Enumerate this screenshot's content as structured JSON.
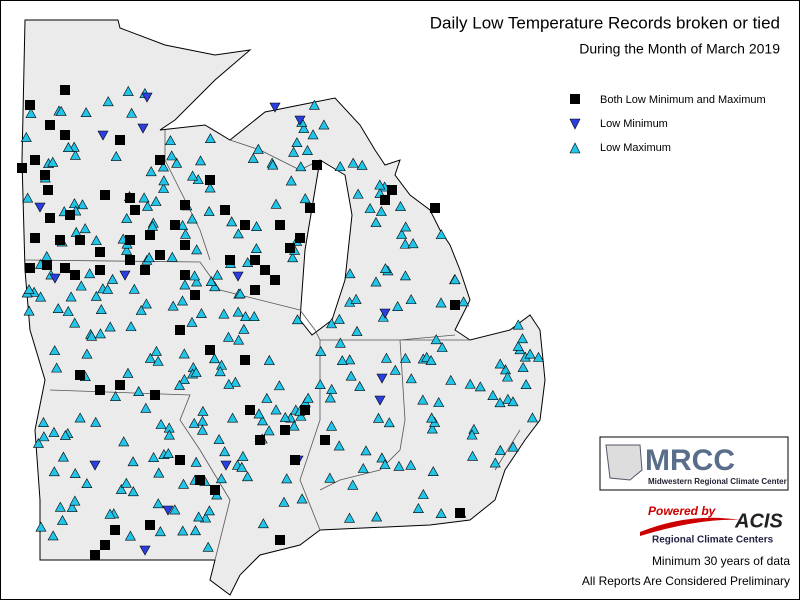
{
  "title": "Daily Low Temperature Records broken or tied",
  "subtitle": "During the Month of March 2019",
  "legend": [
    "Both Low Minimum and Maximum",
    "Low Minimum",
    "Low Maximum"
  ],
  "logos": {
    "mrcc": "MRCC",
    "mrcc_name": "Midwestern Regional Climate Center",
    "powered_by": "Powered by",
    "acis": "ACIS",
    "acis_name": "Regional Climate Centers"
  },
  "notes": [
    "Minimum 30 years of data",
    "All Reports Are Considered Preliminary"
  ]
}
